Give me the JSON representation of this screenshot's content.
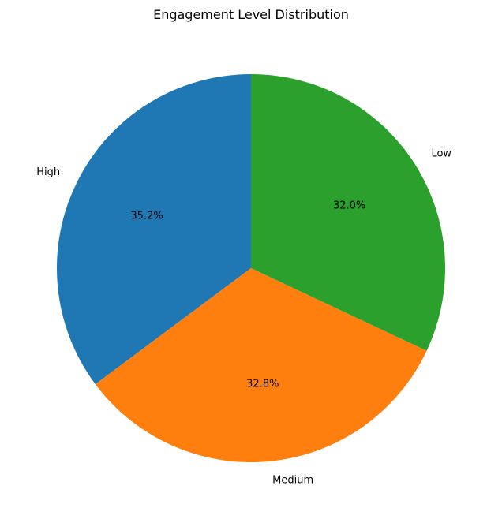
{
  "chart_data": {
    "type": "pie",
    "title": "Engagement Level Distribution",
    "categories": [
      "High",
      "Medium",
      "Low"
    ],
    "values": [
      35.2,
      32.8,
      32.0
    ],
    "value_labels": [
      "35.2%",
      "32.8%",
      "32.0%"
    ],
    "colors": [
      "#1f77b4",
      "#ff7f0e",
      "#2ca02c"
    ],
    "start_angle": 90,
    "direction": "counterclockwise",
    "legend": "none"
  }
}
